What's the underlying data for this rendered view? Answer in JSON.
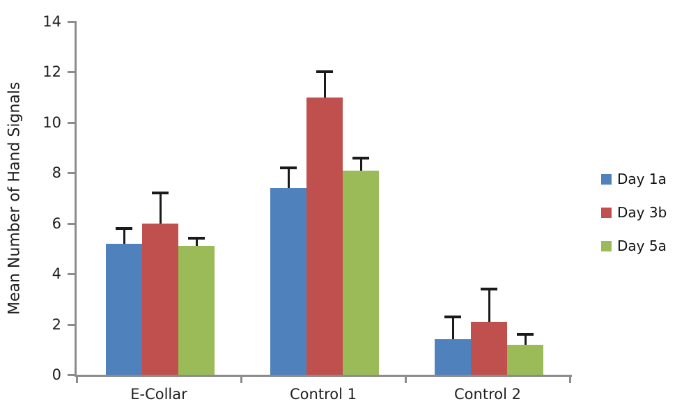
{
  "chart_data": {
    "type": "bar",
    "title": "",
    "xlabel": "",
    "ylabel": "Mean Number of Hand Signals",
    "categories": [
      "E-Collar",
      "Control 1",
      "Control 2"
    ],
    "series": [
      {
        "name": "Day 1a",
        "color": "#4F81BD",
        "values": [
          5.2,
          7.4,
          1.4
        ],
        "errors": [
          0.6,
          0.8,
          0.9
        ]
      },
      {
        "name": "Day 3b",
        "color": "#C0504D",
        "values": [
          6.0,
          11.0,
          2.1
        ],
        "errors": [
          1.2,
          1.0,
          1.3
        ]
      },
      {
        "name": "Day 5a",
        "color": "#9BBB59",
        "values": [
          5.1,
          8.1,
          1.2
        ],
        "errors": [
          0.3,
          0.5,
          0.4
        ]
      }
    ],
    "ylim": [
      0,
      14
    ],
    "yticks": [
      0,
      2,
      4,
      6,
      8,
      10,
      12,
      14
    ],
    "grid": false,
    "error_bars": true,
    "legend_position": "right",
    "colors": {
      "axis": "#8C8C8C",
      "tick_text": "#1f1f1f",
      "error_bar": "#1a1a1a",
      "background": "#ffffff"
    }
  }
}
